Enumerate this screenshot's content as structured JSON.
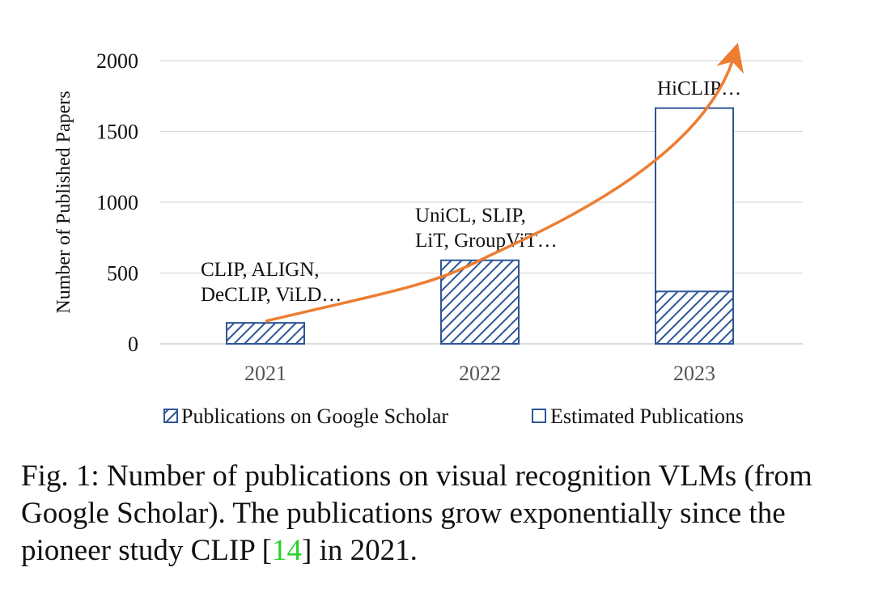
{
  "chart_data": {
    "type": "bar",
    "categories": [
      "2021",
      "2022",
      "2023"
    ],
    "series": [
      {
        "name": "Publications on Google Scholar",
        "values": [
          148,
          590,
          370
        ],
        "pattern": "hatched"
      },
      {
        "name": "Estimated Publications",
        "values": [
          null,
          null,
          1665
        ],
        "pattern": "outline"
      }
    ],
    "annotations": [
      {
        "category": "2021",
        "lines": [
          "CLIP, ALIGN,",
          "DeCLIP, ViLD…"
        ]
      },
      {
        "category": "2022",
        "lines": [
          "UniCL, SLIP,",
          "LiT, GroupViT…"
        ]
      },
      {
        "category": "2023",
        "lines": [
          "HiCLIP…"
        ]
      }
    ],
    "trend_arrow": {
      "color": "#ed7d31",
      "points": [
        [
          2021,
          160
        ],
        [
          2022,
          590
        ],
        [
          2023,
          2050
        ]
      ]
    },
    "title": "",
    "xlabel": "",
    "ylabel": "Number of Published Papers",
    "yticks": [
      0,
      500,
      1000,
      1500,
      2000
    ],
    "ylim": [
      0,
      2000
    ],
    "legend_position": "bottom",
    "grid": true,
    "bar_color": "#2f5597"
  },
  "caption": {
    "prefix": "Fig. 1: Number of publications on visual recognition VLMs (from Google Scholar). The publications grow exponentially since the pioneer study CLIP [",
    "ref": "14",
    "suffix": "] in 2021."
  }
}
